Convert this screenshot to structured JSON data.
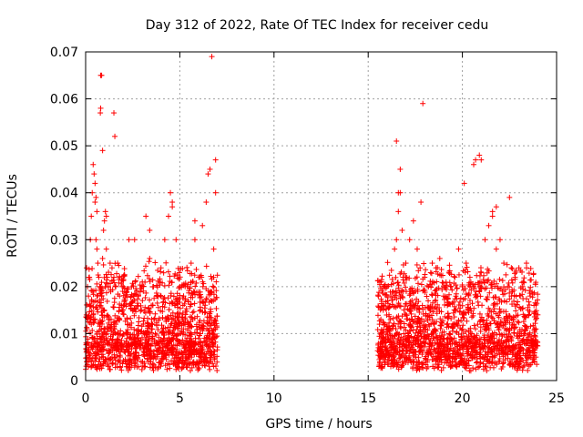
{
  "chart_data": {
    "type": "scatter",
    "title": "Day 312 of 2022, Rate Of TEC Index for receiver cedu",
    "xlabel": "GPS time / hours",
    "ylabel": "ROTI / TECUs",
    "xlim": [
      0,
      25
    ],
    "ylim": [
      0,
      0.07
    ],
    "x_ticks": [
      0,
      5,
      10,
      15,
      20,
      25
    ],
    "x_tick_labels": [
      "0",
      "5",
      "10",
      "15",
      "20",
      "25"
    ],
    "y_ticks": [
      0,
      0.01,
      0.02,
      0.03,
      0.04,
      0.05,
      0.06,
      0.07
    ],
    "y_tick_labels": [
      "0",
      "0.01",
      "0.02",
      "0.03",
      "0.04",
      "0.05",
      "0.06",
      "0.07"
    ],
    "grid": true,
    "marker": "plus",
    "marker_color": "#ff0000",
    "series": [
      {
        "x": [
          0.05,
          0.1,
          0.15,
          0.2,
          0.25,
          0.3,
          0.35,
          0.4,
          0.45,
          0.5,
          0.55,
          0.6,
          0.65,
          0.7,
          0.75,
          0.8,
          0.85,
          0.9,
          0.95,
          1.0,
          1.05,
          1.1,
          1.15,
          1.2,
          1.3,
          1.4,
          1.5,
          1.6,
          1.7,
          1.8,
          1.9,
          2.0,
          2.2,
          2.4,
          2.6,
          2.8,
          3.0,
          3.2,
          3.4,
          3.6,
          3.8,
          4.0,
          4.2,
          4.4,
          4.6,
          4.8,
          5.0,
          5.2,
          5.4,
          5.6,
          5.8,
          6.0,
          6.2,
          6.4,
          6.6,
          6.8,
          6.9,
          0.8,
          0.85,
          0.8,
          0.78,
          1.5,
          1.55,
          0.5,
          0.55,
          0.6,
          0.9,
          1.1,
          6.7,
          6.5,
          6.9,
          4.5,
          4.6,
          5.8,
          3.4,
          2.3,
          0.3,
          0.45,
          0.65,
          1.2,
          4.4,
          6.6,
          6.3,
          1.8,
          2.9,
          3.7,
          4.9,
          5.5,
          6.1,
          0.2,
          1.0,
          2.1,
          3.1,
          4.2,
          5.1,
          6.0,
          6.8,
          0.4,
          1.6,
          2.5,
          3.5,
          4.7,
          5.3,
          6.4,
          0.15,
          0.7,
          1.4,
          2.7,
          3.9,
          4.8,
          5.9,
          6.7
        ],
        "y": [
          0.024,
          0.02,
          0.018,
          0.022,
          0.03,
          0.035,
          0.04,
          0.046,
          0.044,
          0.038,
          0.03,
          0.028,
          0.025,
          0.022,
          0.02,
          0.02,
          0.018,
          0.026,
          0.032,
          0.034,
          0.036,
          0.028,
          0.022,
          0.02,
          0.025,
          0.024,
          0.022,
          0.02,
          0.025,
          0.018,
          0.016,
          0.02,
          0.018,
          0.016,
          0.03,
          0.018,
          0.02,
          0.035,
          0.026,
          0.02,
          0.018,
          0.024,
          0.03,
          0.035,
          0.038,
          0.03,
          0.02,
          0.018,
          0.02,
          0.025,
          0.03,
          0.022,
          0.033,
          0.038,
          0.045,
          0.028,
          0.047,
          0.065,
          0.065,
          0.058,
          0.057,
          0.057,
          0.052,
          0.042,
          0.039,
          0.036,
          0.049,
          0.035,
          0.069,
          0.044,
          0.04,
          0.04,
          0.037,
          0.034,
          0.032,
          0.03,
          0.012,
          0.009,
          0.008,
          0.011,
          0.013,
          0.01,
          0.009,
          0.008,
          0.007,
          0.01,
          0.006,
          0.012,
          0.008,
          0.005,
          0.004,
          0.006,
          0.007,
          0.005,
          0.006,
          0.004,
          0.003,
          0.014,
          0.012,
          0.015,
          0.011,
          0.01,
          0.013,
          0.009,
          0.003,
          0.004,
          0.005,
          0.006,
          0.007,
          0.005,
          0.004,
          0.006
        ]
      },
      {
        "x": [
          15.6,
          15.8,
          16.0,
          16.2,
          16.4,
          16.5,
          16.6,
          16.7,
          16.8,
          17.0,
          17.2,
          17.4,
          17.6,
          17.8,
          18.0,
          18.2,
          18.4,
          18.6,
          18.8,
          19.0,
          19.2,
          19.4,
          19.6,
          19.8,
          20.0,
          20.2,
          20.4,
          20.6,
          20.8,
          21.0,
          21.2,
          21.4,
          21.6,
          21.8,
          22.0,
          22.2,
          22.4,
          22.6,
          22.8,
          23.0,
          23.2,
          23.4,
          23.6,
          23.8,
          24.0,
          16.5,
          16.7,
          17.9,
          16.6,
          20.7,
          20.9,
          20.6,
          21.0,
          20.1,
          21.8,
          22.5,
          21.6,
          15.7,
          16.3,
          17.1,
          18.3,
          19.5,
          20.5,
          21.5,
          22.7,
          23.5,
          15.9,
          16.9,
          17.7,
          18.9,
          19.9,
          20.3,
          21.1,
          22.1,
          23.1,
          23.9,
          16.1,
          17.3,
          18.5,
          19.3,
          20.0,
          21.3,
          22.3,
          23.3,
          15.7,
          16.8,
          17.5,
          18.7,
          19.7,
          20.9,
          21.7,
          22.9,
          23.7
        ],
        "y": [
          0.012,
          0.015,
          0.02,
          0.018,
          0.028,
          0.03,
          0.036,
          0.04,
          0.032,
          0.025,
          0.03,
          0.034,
          0.028,
          0.038,
          0.022,
          0.02,
          0.025,
          0.024,
          0.026,
          0.018,
          0.016,
          0.02,
          0.022,
          0.028,
          0.02,
          0.025,
          0.022,
          0.02,
          0.018,
          0.023,
          0.03,
          0.033,
          0.036,
          0.028,
          0.03,
          0.025,
          0.02,
          0.018,
          0.022,
          0.024,
          0.02,
          0.025,
          0.018,
          0.016,
          0.014,
          0.051,
          0.045,
          0.059,
          0.04,
          0.047,
          0.048,
          0.046,
          0.047,
          0.042,
          0.037,
          0.039,
          0.035,
          0.008,
          0.007,
          0.009,
          0.006,
          0.005,
          0.01,
          0.008,
          0.007,
          0.006,
          0.004,
          0.005,
          0.003,
          0.006,
          0.004,
          0.007,
          0.005,
          0.006,
          0.004,
          0.005,
          0.011,
          0.013,
          0.012,
          0.01,
          0.014,
          0.011,
          0.012,
          0.01,
          0.003,
          0.004,
          0.005,
          0.004,
          0.006,
          0.003,
          0.005,
          0.004,
          0.006
        ]
      }
    ]
  }
}
